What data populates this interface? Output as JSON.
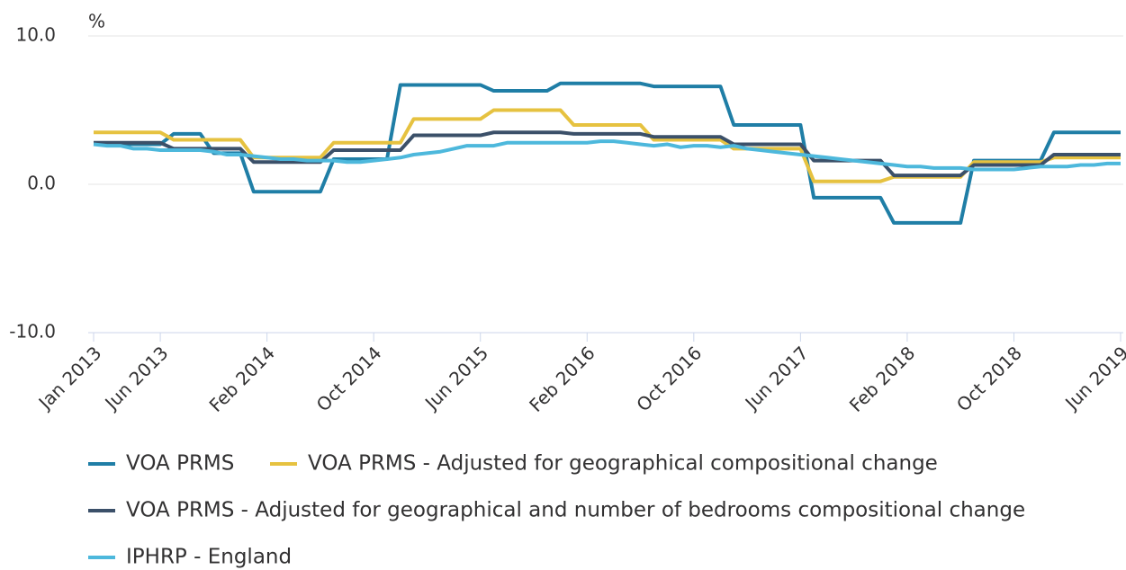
{
  "chart_data": {
    "type": "line",
    "y_label": "%",
    "categories": [
      "Jan 2013",
      null,
      null,
      null,
      null,
      "Jun 2013",
      null,
      null,
      null,
      null,
      null,
      null,
      null,
      "Feb 2014",
      null,
      null,
      null,
      null,
      null,
      null,
      null,
      "Oct 2014",
      null,
      null,
      null,
      null,
      null,
      null,
      null,
      "Jun 2015",
      null,
      null,
      null,
      null,
      null,
      null,
      null,
      "Feb 2016",
      null,
      null,
      null,
      null,
      null,
      null,
      null,
      "Oct 2016",
      null,
      null,
      null,
      null,
      null,
      null,
      null,
      "Jun 2017",
      null,
      null,
      null,
      null,
      null,
      null,
      null,
      "Feb 2018",
      null,
      null,
      null,
      null,
      null,
      null,
      null,
      "Oct 2018",
      null,
      null,
      null,
      null,
      null,
      null,
      null,
      "Jun 2019"
    ],
    "series": [
      {
        "name": "VOA PRMS",
        "color": "#1f7ea6",
        "values": [
          2.7,
          2.7,
          2.7,
          2.7,
          2.7,
          2.7,
          3.4,
          3.4,
          3.4,
          2.1,
          2.1,
          2.1,
          -0.5,
          -0.5,
          -0.5,
          -0.5,
          -0.5,
          -0.5,
          1.7,
          1.7,
          1.7,
          1.7,
          1.7,
          6.7,
          6.7,
          6.7,
          6.7,
          6.7,
          6.7,
          6.7,
          6.3,
          6.3,
          6.3,
          6.3,
          6.3,
          6.8,
          6.8,
          6.8,
          6.8,
          6.8,
          6.8,
          6.8,
          6.6,
          6.6,
          6.6,
          6.6,
          6.6,
          6.6,
          4.0,
          4.0,
          4.0,
          4.0,
          4.0,
          4.0,
          -0.9,
          -0.9,
          -0.9,
          -0.9,
          -0.9,
          -0.9,
          -2.6,
          -2.6,
          -2.6,
          -2.6,
          -2.6,
          -2.6,
          1.6,
          1.6,
          1.6,
          1.6,
          1.6,
          1.6,
          3.5,
          3.5,
          3.5,
          3.5,
          3.5,
          3.5
        ]
      },
      {
        "name": "VOA PRMS - Adjusted for geographical compositional change",
        "color": "#e6c240",
        "values": [
          3.5,
          3.5,
          3.5,
          3.5,
          3.5,
          3.5,
          3.0,
          3.0,
          3.0,
          3.0,
          3.0,
          3.0,
          1.8,
          1.8,
          1.8,
          1.8,
          1.8,
          1.8,
          2.8,
          2.8,
          2.8,
          2.8,
          2.8,
          2.8,
          4.4,
          4.4,
          4.4,
          4.4,
          4.4,
          4.4,
          5.0,
          5.0,
          5.0,
          5.0,
          5.0,
          5.0,
          4.0,
          4.0,
          4.0,
          4.0,
          4.0,
          4.0,
          3.0,
          3.0,
          3.0,
          3.0,
          3.0,
          3.0,
          2.4,
          2.4,
          2.4,
          2.4,
          2.4,
          2.4,
          0.2,
          0.2,
          0.2,
          0.2,
          0.2,
          0.2,
          0.5,
          0.5,
          0.5,
          0.5,
          0.5,
          0.5,
          1.5,
          1.5,
          1.5,
          1.5,
          1.5,
          1.5,
          1.8,
          1.8,
          1.8,
          1.8,
          1.8,
          1.8
        ]
      },
      {
        "name": "VOA PRMS - Adjusted for geographical and number of bedrooms compositional change",
        "color": "#3b5069",
        "values": [
          2.8,
          2.8,
          2.8,
          2.8,
          2.8,
          2.8,
          2.4,
          2.4,
          2.4,
          2.4,
          2.4,
          2.4,
          1.5,
          1.5,
          1.5,
          1.5,
          1.5,
          1.5,
          2.3,
          2.3,
          2.3,
          2.3,
          2.3,
          2.3,
          3.3,
          3.3,
          3.3,
          3.3,
          3.3,
          3.3,
          3.5,
          3.5,
          3.5,
          3.5,
          3.5,
          3.5,
          3.4,
          3.4,
          3.4,
          3.4,
          3.4,
          3.4,
          3.2,
          3.2,
          3.2,
          3.2,
          3.2,
          3.2,
          2.7,
          2.7,
          2.7,
          2.7,
          2.7,
          2.7,
          1.6,
          1.6,
          1.6,
          1.6,
          1.6,
          1.6,
          0.6,
          0.6,
          0.6,
          0.6,
          0.6,
          0.6,
          1.3,
          1.3,
          1.3,
          1.3,
          1.3,
          1.3,
          2.0,
          2.0,
          2.0,
          2.0,
          2.0,
          2.0
        ]
      },
      {
        "name": "IPHRP - England",
        "color": "#4db8dc",
        "values": [
          2.7,
          2.6,
          2.6,
          2.4,
          2.4,
          2.3,
          2.3,
          2.3,
          2.3,
          2.2,
          2.0,
          2.0,
          1.9,
          1.8,
          1.7,
          1.7,
          1.6,
          1.6,
          1.6,
          1.5,
          1.5,
          1.6,
          1.7,
          1.8,
          2.0,
          2.1,
          2.2,
          2.4,
          2.6,
          2.6,
          2.6,
          2.8,
          2.8,
          2.8,
          2.8,
          2.8,
          2.8,
          2.8,
          2.9,
          2.9,
          2.8,
          2.7,
          2.6,
          2.7,
          2.5,
          2.6,
          2.6,
          2.5,
          2.6,
          2.4,
          2.3,
          2.2,
          2.1,
          2.0,
          1.9,
          1.8,
          1.7,
          1.6,
          1.5,
          1.4,
          1.3,
          1.2,
          1.2,
          1.1,
          1.1,
          1.1,
          1.0,
          1.0,
          1.0,
          1.0,
          1.1,
          1.2,
          1.2,
          1.2,
          1.3,
          1.3,
          1.4,
          1.4
        ]
      }
    ],
    "ylim": [
      -10,
      10
    ],
    "yticks": [
      {
        "value": -10,
        "label": "-10.0"
      },
      {
        "value": 0,
        "label": "0.0"
      },
      {
        "value": 10,
        "label": "10.0"
      }
    ],
    "grid": true
  }
}
